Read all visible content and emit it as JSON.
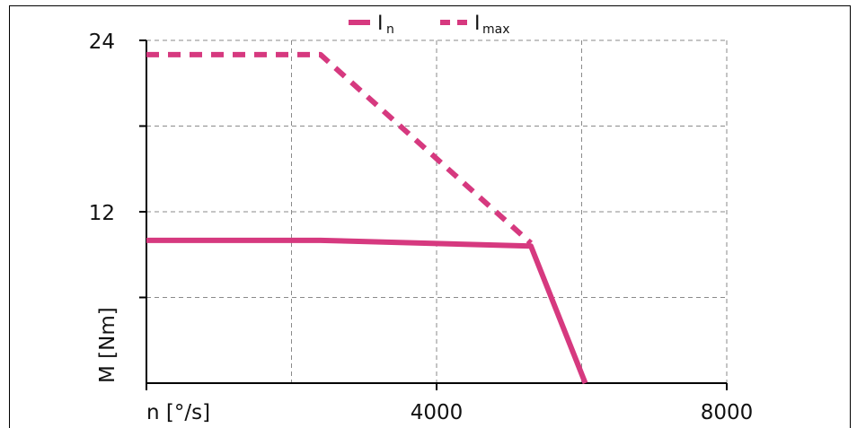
{
  "chart_data": {
    "type": "line",
    "title": "",
    "xlabel": "n [°/s]",
    "ylabel": "M [Nm]",
    "xlim": [
      0,
      8000
    ],
    "ylim": [
      0,
      24
    ],
    "x_ticks": [
      {
        "value": 4000,
        "label": "4000"
      },
      {
        "value": 8000,
        "label": "8000"
      }
    ],
    "y_ticks": [
      {
        "value": 24,
        "label": "24"
      },
      {
        "value": 12,
        "label": "12"
      }
    ],
    "grid": true,
    "legend_position": "top-center",
    "series": [
      {
        "name": "I",
        "subscript": "n",
        "style": "solid",
        "color": "#d6397f",
        "points": [
          [
            0,
            10.0
          ],
          [
            2400,
            10.0
          ],
          [
            5300,
            9.6
          ],
          [
            6050,
            0
          ]
        ]
      },
      {
        "name": "I",
        "subscript": "max",
        "style": "dashed",
        "color": "#d6397f",
        "points": [
          [
            0,
            23.0
          ],
          [
            2400,
            23.0
          ],
          [
            5300,
            9.8
          ]
        ]
      }
    ]
  }
}
